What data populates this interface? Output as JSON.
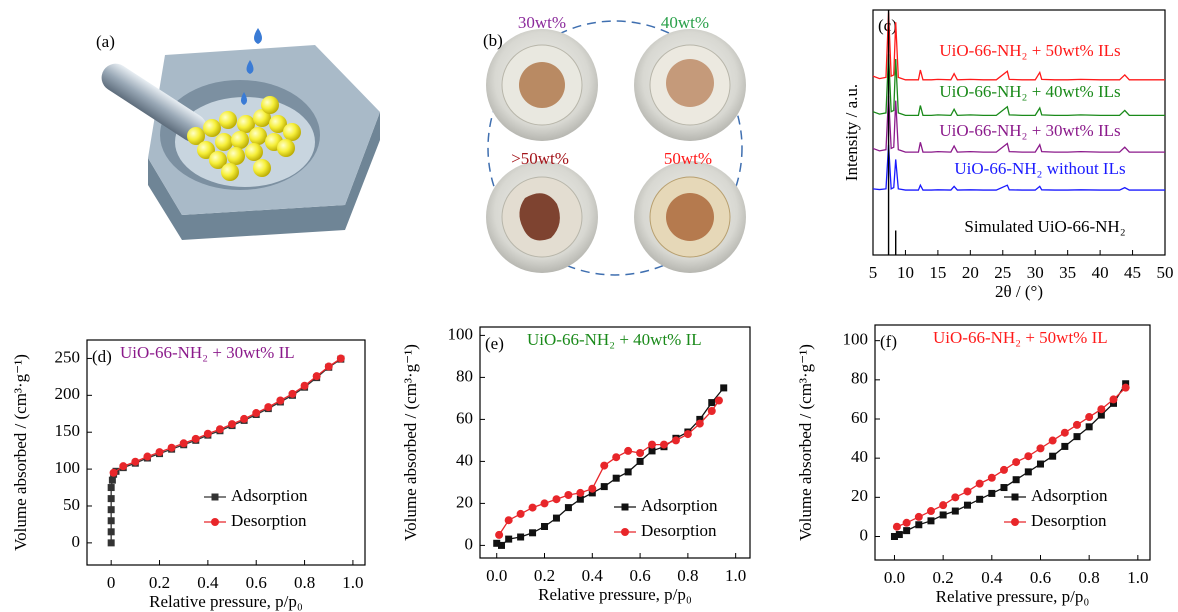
{
  "illustrations": {
    "a": {
      "label": "(a)"
    },
    "b": {
      "label": "(b)",
      "samples": [
        "30wt%",
        "40wt%",
        ">50wt%",
        "50wt%"
      ]
    }
  },
  "chart_data": [
    {
      "type": "line",
      "panel": "(c)",
      "xlabel": "2θ / (°)",
      "ylabel": "Intensity / a.u.",
      "xlim": [
        5,
        50
      ],
      "ylim": [
        0,
        10
      ],
      "xticks": [
        5,
        10,
        15,
        20,
        25,
        30,
        35,
        40,
        45,
        50
      ],
      "x": [
        5,
        6,
        7,
        7.4,
        7.8,
        8.2,
        8.5,
        8.9,
        10,
        11,
        12,
        12.3,
        12.7,
        14,
        15,
        17,
        17.5,
        18,
        20,
        22,
        24,
        25.7,
        26,
        28,
        30,
        30.7,
        31,
        33,
        35,
        37,
        40,
        43,
        43.8,
        44.5,
        47,
        50
      ],
      "series": [
        {
          "name": "UiO-66-NH₂ + 50wt% ILs",
          "color": "#ff1a1a",
          "values": [
            7.3,
            7.2,
            7.25,
            9.9,
            7.3,
            7.35,
            9.5,
            7.25,
            7.15,
            7.15,
            7.15,
            7.55,
            7.15,
            7.15,
            7.17,
            7.15,
            7.4,
            7.15,
            7.17,
            7.15,
            7.15,
            7.5,
            7.17,
            7.15,
            7.15,
            7.45,
            7.17,
            7.15,
            7.15,
            7.17,
            7.15,
            7.15,
            7.35,
            7.15,
            7.15,
            7.15
          ]
        },
        {
          "name": "UiO-66-NH₂ + 40wt% ILs",
          "color": "#1a8a1a",
          "values": [
            5.85,
            5.75,
            5.8,
            8.2,
            5.85,
            5.9,
            8.0,
            5.8,
            5.7,
            5.7,
            5.7,
            6.1,
            5.7,
            5.7,
            5.72,
            5.7,
            5.95,
            5.7,
            5.72,
            5.7,
            5.7,
            6.05,
            5.72,
            5.7,
            5.7,
            6.0,
            5.72,
            5.7,
            5.7,
            5.72,
            5.7,
            5.7,
            5.9,
            5.7,
            5.7,
            5.7
          ]
        },
        {
          "name": "UiO-66-NH₂ + 30wt% ILs",
          "color": "#8b1a8b",
          "values": [
            4.35,
            4.25,
            4.3,
            6.5,
            4.35,
            4.4,
            6.3,
            4.3,
            4.2,
            4.2,
            4.2,
            4.6,
            4.2,
            4.2,
            4.22,
            4.2,
            4.45,
            4.2,
            4.22,
            4.2,
            4.2,
            4.55,
            4.22,
            4.2,
            4.2,
            4.5,
            4.22,
            4.2,
            4.2,
            4.22,
            4.2,
            4.2,
            4.4,
            4.2,
            4.2,
            4.2
          ]
        },
        {
          "name": "UiO-66-NH₂ without ILs",
          "color": "#1a1aff",
          "values": [
            2.7,
            2.67,
            2.7,
            4.5,
            2.7,
            2.75,
            3.9,
            2.7,
            2.65,
            2.65,
            2.65,
            2.85,
            2.65,
            2.65,
            2.66,
            2.65,
            2.8,
            2.65,
            2.66,
            2.65,
            2.65,
            2.85,
            2.66,
            2.65,
            2.65,
            2.8,
            2.66,
            2.65,
            2.65,
            2.66,
            2.65,
            2.65,
            2.75,
            2.65,
            2.65,
            2.65
          ]
        },
        {
          "name": "Simulated UiO-66-NH₂",
          "color": "#000000",
          "style": "sticks",
          "values": [
            0,
            0,
            0,
            10,
            0,
            0,
            1.0,
            0,
            0,
            0,
            0,
            0,
            0,
            0,
            0,
            0,
            0,
            0,
            0,
            0,
            0,
            0,
            0,
            0,
            0,
            0,
            0,
            0,
            0,
            0,
            0,
            0,
            0,
            0,
            0,
            0
          ]
        }
      ]
    },
    {
      "type": "line",
      "panel": "(d)",
      "title": "UiO-66-NH₂ + 30wt% IL",
      "title_color": "#8b1a8b",
      "xlabel": "Relative pressure, p/p₀",
      "ylabel": "Volume absorbed / (cm³·g⁻¹)",
      "xlim": [
        -0.1,
        1.05
      ],
      "ylim": [
        -30,
        275
      ],
      "xticks": [
        0,
        0.2,
        0.4,
        0.6,
        0.8,
        {
          "value": 1,
          "label": "1.0"
        }
      ],
      "yticks": [
        0,
        50,
        100,
        150,
        200,
        250
      ],
      "legend": "lower right",
      "series": [
        {
          "name": "Adsorption",
          "color": "#333333",
          "marker": "square",
          "x": [
            0,
            0,
            0,
            0,
            0,
            0,
            0.005,
            0.01,
            0.02,
            0.05,
            0.1,
            0.15,
            0.2,
            0.25,
            0.3,
            0.35,
            0.4,
            0.45,
            0.5,
            0.55,
            0.6,
            0.65,
            0.7,
            0.75,
            0.8,
            0.85,
            0.9,
            0.95
          ],
          "values": [
            0,
            15,
            30,
            45,
            60,
            75,
            85,
            93,
            97,
            102,
            108,
            115,
            121,
            127,
            133,
            139,
            146,
            152,
            159,
            166,
            174,
            182,
            191,
            200,
            211,
            224,
            238,
            249
          ]
        },
        {
          "name": "Desorption",
          "color": "#e8262a",
          "marker": "circle",
          "x": [
            0.01,
            0.05,
            0.1,
            0.15,
            0.2,
            0.25,
            0.3,
            0.35,
            0.4,
            0.45,
            0.5,
            0.55,
            0.6,
            0.65,
            0.7,
            0.75,
            0.8,
            0.85,
            0.9,
            0.95
          ],
          "values": [
            95,
            104,
            110,
            117,
            123,
            129,
            135,
            141,
            148,
            154,
            161,
            168,
            176,
            184,
            193,
            202,
            213,
            226,
            239,
            250
          ]
        }
      ]
    },
    {
      "type": "line",
      "panel": "(e)",
      "title": "UiO-66-NH₂ + 40wt% IL",
      "title_color": "#1a8a1a",
      "xlabel": "Relative pressure, p/p₀",
      "ylabel": "Volume absorbed / (cm³·g⁻¹)",
      "xlim": [
        -0.07,
        1.06
      ],
      "ylim": [
        -6,
        104
      ],
      "xticks": [
        {
          "value": 0,
          "label": "0.0"
        },
        0.2,
        0.4,
        0.6,
        0.8,
        {
          "value": 1,
          "label": "1.0"
        }
      ],
      "yticks": [
        0,
        20,
        40,
        60,
        80,
        100
      ],
      "legend": "lower right",
      "series": [
        {
          "name": "Adsorption",
          "color": "#111111",
          "marker": "square",
          "x": [
            0,
            0.02,
            0.05,
            0.1,
            0.15,
            0.2,
            0.25,
            0.3,
            0.35,
            0.4,
            0.45,
            0.5,
            0.55,
            0.6,
            0.65,
            0.7,
            0.75,
            0.8,
            0.85,
            0.9,
            0.95
          ],
          "values": [
            1,
            0,
            3,
            4,
            6,
            9,
            13,
            18,
            22,
            25,
            28,
            32,
            35,
            40,
            45,
            47,
            51,
            54,
            60,
            68,
            75
          ]
        },
        {
          "name": "Desorption",
          "color": "#e8262a",
          "marker": "circle",
          "x": [
            0.01,
            0.05,
            0.1,
            0.15,
            0.2,
            0.25,
            0.3,
            0.35,
            0.4,
            0.45,
            0.5,
            0.55,
            0.6,
            0.65,
            0.7,
            0.75,
            0.8,
            0.85,
            0.9,
            0.93
          ],
          "values": [
            5,
            12,
            15,
            18,
            20,
            22,
            24,
            25,
            27,
            38,
            42,
            45,
            44,
            48,
            48,
            50,
            53,
            58,
            64,
            69
          ]
        }
      ]
    },
    {
      "type": "line",
      "panel": "(f)",
      "title": "UiO-66-NH₂ + 50wt% IL",
      "title_color": "#ff1a1a",
      "xlabel": "Relative pressure, p/p₀",
      "ylabel": "Volume absorbed / (cm³·g⁻¹)",
      "xlim": [
        -0.08,
        1.05
      ],
      "ylim": [
        -12,
        108
      ],
      "xticks": [
        {
          "value": 0,
          "label": "0.0"
        },
        0.2,
        0.4,
        0.6,
        0.8,
        {
          "value": 1,
          "label": "1.0"
        }
      ],
      "yticks": [
        0,
        20,
        40,
        60,
        80,
        100
      ],
      "legend": "lower right",
      "series": [
        {
          "name": "Adsorption",
          "color": "#111111",
          "marker": "square",
          "x": [
            0,
            0.02,
            0.05,
            0.1,
            0.15,
            0.2,
            0.25,
            0.3,
            0.35,
            0.4,
            0.45,
            0.5,
            0.55,
            0.6,
            0.65,
            0.7,
            0.75,
            0.8,
            0.85,
            0.9,
            0.95
          ],
          "values": [
            0,
            1,
            3,
            6,
            8,
            11,
            13,
            16,
            19,
            22,
            25,
            29,
            33,
            37,
            41,
            46,
            51,
            56,
            62,
            68,
            78
          ]
        },
        {
          "name": "Desorption",
          "color": "#e8262a",
          "marker": "circle",
          "x": [
            0.01,
            0.05,
            0.1,
            0.15,
            0.2,
            0.25,
            0.3,
            0.35,
            0.4,
            0.45,
            0.5,
            0.55,
            0.6,
            0.65,
            0.7,
            0.75,
            0.8,
            0.85,
            0.9,
            0.95
          ],
          "values": [
            5,
            7,
            10,
            13,
            16,
            20,
            23,
            27,
            30,
            34,
            38,
            41,
            45,
            49,
            53,
            57,
            61,
            65,
            70,
            76
          ]
        }
      ]
    }
  ]
}
